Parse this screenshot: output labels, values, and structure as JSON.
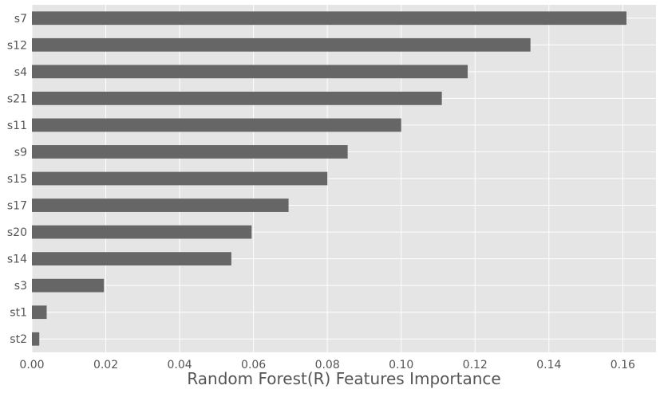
{
  "chart_data": {
    "type": "bar",
    "orientation": "horizontal",
    "categories": [
      "s7",
      "s12",
      "s4",
      "s21",
      "s11",
      "s9",
      "s15",
      "s17",
      "s20",
      "s14",
      "s3",
      "st1",
      "st2"
    ],
    "values": [
      0.161,
      0.135,
      0.118,
      0.111,
      0.1,
      0.0855,
      0.08,
      0.0695,
      0.0595,
      0.054,
      0.0195,
      0.004,
      0.002
    ],
    "x_ticks": [
      "0.00",
      "0.02",
      "0.04",
      "0.06",
      "0.08",
      "0.10",
      "0.12",
      "0.14",
      "0.16"
    ],
    "xlabel": "Random Forest(R) Features Importance",
    "ylabel": "",
    "xlim": [
      0,
      0.169
    ],
    "grid": true,
    "colors": {
      "background": "#e5e5e5",
      "grid": "#ffffff",
      "bar": "#666666",
      "text": "#555555"
    }
  }
}
